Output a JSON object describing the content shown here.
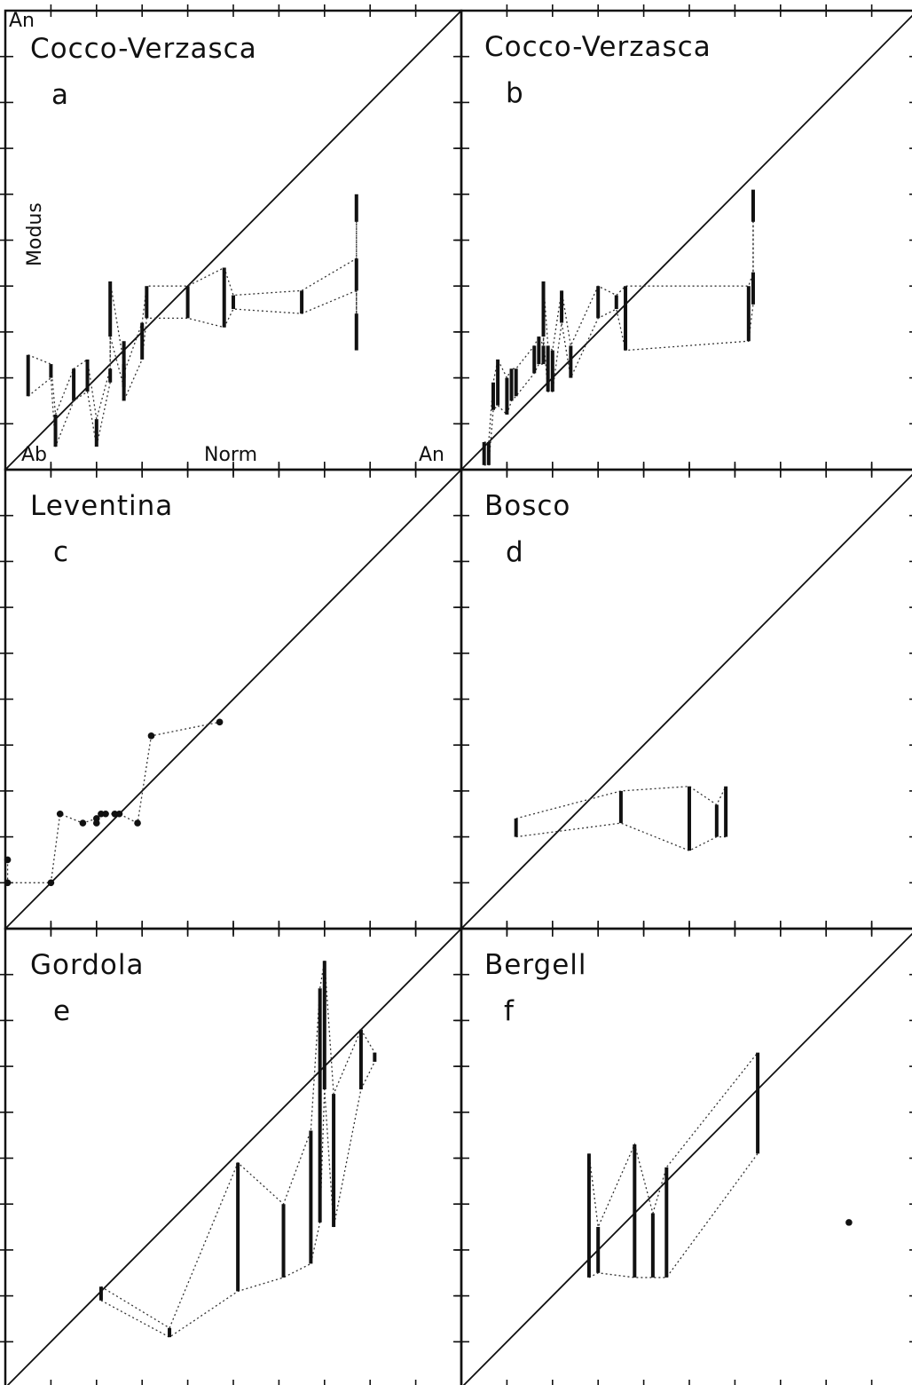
{
  "axis_text": {
    "top_left": "An",
    "y_label": "Modus",
    "x_left": "Ab",
    "x_label": "Norm",
    "x_right": "An"
  },
  "chart_data": [
    {
      "type": "scatter",
      "title": "Cocco-Verzasca",
      "panel_label": "a",
      "xlabel": "Norm",
      "ylabel": "Modus",
      "xlim": [
        0,
        100
      ],
      "ylim": [
        0,
        100
      ],
      "reference_line": "y = x",
      "bars": [
        {
          "x": 11,
          "y1": 5,
          "y2": 12
        },
        {
          "x": 20,
          "y1": 5,
          "y2": 11
        },
        {
          "x": 5,
          "y1": 16,
          "y2": 25
        },
        {
          "x": 10,
          "y1": 20,
          "y2": 23
        },
        {
          "x": 15,
          "y1": 15,
          "y2": 22
        },
        {
          "x": 18,
          "y1": 17,
          "y2": 24
        },
        {
          "x": 23,
          "y1": 19,
          "y2": 22
        },
        {
          "x": 26,
          "y1": 18,
          "y2": 23
        },
        {
          "x": 26,
          "y1": 20,
          "y2": 28
        },
        {
          "x": 23,
          "y1": 29,
          "y2": 41
        },
        {
          "x": 26,
          "y1": 15,
          "y2": 21
        },
        {
          "x": 30,
          "y1": 24,
          "y2": 32
        },
        {
          "x": 31,
          "y1": 33,
          "y2": 40
        },
        {
          "x": 40,
          "y1": 33,
          "y2": 40
        },
        {
          "x": 48,
          "y1": 31,
          "y2": 44
        },
        {
          "x": 50,
          "y1": 35,
          "y2": 38
        },
        {
          "x": 65,
          "y1": 34,
          "y2": 39
        },
        {
          "x": 77,
          "y1": 39,
          "y2": 46
        },
        {
          "x": 77,
          "y1": 26,
          "y2": 34
        },
        {
          "x": 77,
          "y1": 54,
          "y2": 60
        }
      ],
      "points": []
    },
    {
      "type": "scatter",
      "title": "Cocco-Verzasca",
      "panel_label": "b",
      "xlabel": "Norm",
      "ylabel": "Modus",
      "xlim": [
        0,
        100
      ],
      "ylim": [
        0,
        100
      ],
      "reference_line": "y = x",
      "bars": [
        {
          "x": 5,
          "y1": 1,
          "y2": 6
        },
        {
          "x": 6,
          "y1": 1,
          "y2": 6
        },
        {
          "x": 7,
          "y1": 13,
          "y2": 19
        },
        {
          "x": 8,
          "y1": 14,
          "y2": 24
        },
        {
          "x": 10,
          "y1": 12,
          "y2": 20
        },
        {
          "x": 11,
          "y1": 15,
          "y2": 22
        },
        {
          "x": 12,
          "y1": 16,
          "y2": 22
        },
        {
          "x": 16,
          "y1": 21,
          "y2": 27
        },
        {
          "x": 17,
          "y1": 23,
          "y2": 29
        },
        {
          "x": 18,
          "y1": 23,
          "y2": 27
        },
        {
          "x": 19,
          "y1": 17,
          "y2": 27
        },
        {
          "x": 20,
          "y1": 17,
          "y2": 26
        },
        {
          "x": 18,
          "y1": 29,
          "y2": 41
        },
        {
          "x": 22,
          "y1": 32,
          "y2": 39
        },
        {
          "x": 24,
          "y1": 20,
          "y2": 27
        },
        {
          "x": 30,
          "y1": 33,
          "y2": 40
        },
        {
          "x": 34,
          "y1": 35,
          "y2": 38
        },
        {
          "x": 36,
          "y1": 26,
          "y2": 40
        },
        {
          "x": 63,
          "y1": 28,
          "y2": 40
        },
        {
          "x": 64,
          "y1": 36,
          "y2": 43
        },
        {
          "x": 64,
          "y1": 54,
          "y2": 61
        }
      ],
      "points": []
    },
    {
      "type": "scatter",
      "title": "Leventina",
      "panel_label": "c",
      "xlabel": "Norm",
      "ylabel": "Modus",
      "xlim": [
        0,
        100
      ],
      "ylim": [
        0,
        100
      ],
      "reference_line": "y = x",
      "bars": [],
      "points": [
        {
          "x": 0.5,
          "y": 15
        },
        {
          "x": 0.5,
          "y": 10
        },
        {
          "x": 10,
          "y": 10
        },
        {
          "x": 12,
          "y": 25
        },
        {
          "x": 17,
          "y": 23
        },
        {
          "x": 20,
          "y": 24
        },
        {
          "x": 20,
          "y": 23
        },
        {
          "x": 21,
          "y": 25
        },
        {
          "x": 22,
          "y": 25
        },
        {
          "x": 24,
          "y": 25
        },
        {
          "x": 25,
          "y": 25
        },
        {
          "x": 29,
          "y": 23
        },
        {
          "x": 32,
          "y": 42
        },
        {
          "x": 47,
          "y": 45
        }
      ]
    },
    {
      "type": "scatter",
      "title": "Bosco",
      "panel_label": "d",
      "xlabel": "Norm",
      "ylabel": "Modus",
      "xlim": [
        0,
        100
      ],
      "ylim": [
        0,
        100
      ],
      "reference_line": "y = x",
      "bars": [
        {
          "x": 12,
          "y1": 20,
          "y2": 24
        },
        {
          "x": 35,
          "y1": 23,
          "y2": 30
        },
        {
          "x": 50,
          "y1": 17,
          "y2": 31
        },
        {
          "x": 56,
          "y1": 20,
          "y2": 27
        },
        {
          "x": 58,
          "y1": 20,
          "y2": 31
        }
      ],
      "points": []
    },
    {
      "type": "scatter",
      "title": "Gordola",
      "panel_label": "e",
      "xlabel": "Norm",
      "ylabel": "Modus",
      "xlim": [
        0,
        100
      ],
      "ylim": [
        0,
        100
      ],
      "reference_line": "y = x",
      "bars": [
        {
          "x": 21,
          "y1": 19,
          "y2": 22
        },
        {
          "x": 36,
          "y1": 11,
          "y2": 13
        },
        {
          "x": 51,
          "y1": 21,
          "y2": 49
        },
        {
          "x": 61,
          "y1": 24,
          "y2": 40
        },
        {
          "x": 67,
          "y1": 27,
          "y2": 56
        },
        {
          "x": 69,
          "y1": 36,
          "y2": 87
        },
        {
          "x": 70,
          "y1": 65,
          "y2": 93
        },
        {
          "x": 72,
          "y1": 35,
          "y2": 64
        },
        {
          "x": 78,
          "y1": 65,
          "y2": 78
        },
        {
          "x": 81,
          "y1": 71,
          "y2": 73
        }
      ],
      "points": []
    },
    {
      "type": "scatter",
      "title": "Bergell",
      "panel_label": "f",
      "xlabel": "Norm",
      "ylabel": "Modus",
      "xlim": [
        0,
        100
      ],
      "ylim": [
        0,
        100
      ],
      "reference_line": "y = x",
      "bars": [
        {
          "x": 28,
          "y1": 24,
          "y2": 51
        },
        {
          "x": 30,
          "y1": 25,
          "y2": 35
        },
        {
          "x": 38,
          "y1": 24,
          "y2": 53
        },
        {
          "x": 42,
          "y1": 24,
          "y2": 38
        },
        {
          "x": 45,
          "y1": 24,
          "y2": 48
        },
        {
          "x": 65,
          "y1": 51,
          "y2": 73
        }
      ],
      "points": [
        {
          "x": 85,
          "y": 36
        }
      ]
    }
  ]
}
